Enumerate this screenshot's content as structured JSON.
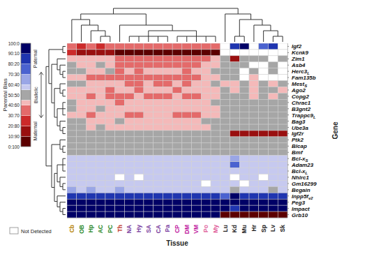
{
  "chart_data": {
    "type": "heatmap",
    "x_label": "Tissue",
    "y_label": "Gene",
    "categories": [
      {
        "name": "Cb",
        "color": "#b8860b"
      },
      {
        "name": "OB",
        "color": "#2e8b2e"
      },
      {
        "name": "Hp",
        "color": "#2e8b2e"
      },
      {
        "name": "AC",
        "color": "#2e8b2e"
      },
      {
        "name": "PC",
        "color": "#2e8b2e"
      },
      {
        "name": "Th",
        "color": "#c0392b"
      },
      {
        "name": "NA",
        "color": "#7b3fa0"
      },
      {
        "name": "Hy",
        "color": "#7b3fa0"
      },
      {
        "name": "SA",
        "color": "#7b3fa0"
      },
      {
        "name": "CA",
        "color": "#7b3fa0"
      },
      {
        "name": "Pa",
        "color": "#7b3fa0"
      },
      {
        "name": "CP",
        "color": "#c020a0"
      },
      {
        "name": "DM",
        "color": "#c020a0"
      },
      {
        "name": "VM",
        "color": "#c020a0"
      },
      {
        "name": "Po",
        "color": "#e0609a"
      },
      {
        "name": "My",
        "color": "#e0609a"
      },
      {
        "name": "Lu",
        "color": "#222222"
      },
      {
        "name": "Kd",
        "color": "#222222"
      },
      {
        "name": "Mu",
        "color": "#222222"
      },
      {
        "name": "Hr",
        "color": "#222222"
      },
      {
        "name": "Sp",
        "color": "#222222"
      },
      {
        "name": "Lv",
        "color": "#222222"
      },
      {
        "name": "Sk",
        "color": "#222222"
      }
    ],
    "rows": [
      {
        "name": "Igf2",
        "values": [
          30,
          25,
          30,
          25,
          30,
          30,
          35,
          30,
          35,
          30,
          30,
          35,
          30,
          35,
          30,
          30,
          null,
          80,
          92,
          null,
          75,
          88,
          null
        ]
      },
      {
        "name": "Kcnk9",
        "values": [
          20,
          15,
          15,
          15,
          10,
          5,
          5,
          5,
          5,
          5,
          5,
          5,
          5,
          5,
          5,
          5,
          null,
          null,
          null,
          null,
          null,
          null,
          null
        ]
      },
      {
        "name": "Zim1",
        "values": [
          40,
          42,
          40,
          40,
          40,
          35,
          30,
          30,
          35,
          30,
          35,
          30,
          30,
          35,
          35,
          40,
          50,
          15,
          50,
          50,
          50,
          null,
          50
        ]
      },
      {
        "name": "Asb4",
        "values": [
          50,
          42,
          42,
          50,
          42,
          35,
          35,
          30,
          35,
          35,
          35,
          35,
          30,
          35,
          42,
          42,
          50,
          50,
          50,
          null,
          null,
          50,
          null
        ]
      },
      {
        "name": "Herc3",
        "sub": "L",
        "values": [
          50,
          50,
          42,
          42,
          50,
          35,
          42,
          35,
          42,
          42,
          42,
          42,
          35,
          42,
          42,
          50,
          50,
          50,
          null,
          50,
          null,
          50,
          null
        ]
      },
      {
        "name": "Fam135b",
        "values": [
          42,
          42,
          35,
          35,
          35,
          35,
          35,
          35,
          35,
          35,
          35,
          35,
          35,
          35,
          42,
          42,
          50,
          50,
          null,
          42,
          null,
          null,
          null
        ]
      },
      {
        "name": "Mest",
        "sub": "S",
        "values": [
          50,
          50,
          42,
          42,
          42,
          42,
          35,
          35,
          42,
          35,
          35,
          42,
          35,
          42,
          42,
          50,
          42,
          42,
          50,
          42,
          50,
          42,
          50
        ]
      },
      {
        "name": "Ago2",
        "values": [
          42,
          42,
          42,
          42,
          35,
          42,
          42,
          35,
          42,
          42,
          42,
          35,
          42,
          42,
          42,
          42,
          50,
          42,
          50,
          42,
          50,
          50,
          42
        ]
      },
      {
        "name": "Copg2",
        "values": [
          42,
          42,
          35,
          42,
          35,
          35,
          35,
          42,
          35,
          35,
          35,
          42,
          35,
          35,
          42,
          42,
          50,
          50,
          50,
          42,
          50,
          42,
          50
        ]
      },
      {
        "name": "Chrac1",
        "values": [
          50,
          42,
          42,
          42,
          42,
          35,
          42,
          42,
          42,
          42,
          42,
          42,
          42,
          42,
          42,
          50,
          50,
          50,
          50,
          50,
          50,
          50,
          50
        ]
      },
      {
        "name": "B3gnt2",
        "values": [
          50,
          42,
          42,
          50,
          42,
          42,
          42,
          42,
          42,
          42,
          42,
          42,
          42,
          42,
          42,
          42,
          50,
          50,
          50,
          50,
          50,
          50,
          50
        ]
      },
      {
        "name": "Trappc9",
        "sub": "L",
        "values": [
          42,
          42,
          35,
          42,
          42,
          42,
          35,
          35,
          42,
          42,
          42,
          35,
          35,
          35,
          42,
          42,
          50,
          50,
          50,
          50,
          50,
          50,
          50
        ]
      },
      {
        "name": "Bag3",
        "values": [
          50,
          50,
          42,
          42,
          42,
          50,
          42,
          42,
          42,
          42,
          42,
          42,
          42,
          42,
          50,
          50,
          50,
          50,
          50,
          50,
          50,
          50,
          50
        ]
      },
      {
        "name": "Ube3a",
        "values": [
          50,
          50,
          42,
          50,
          42,
          42,
          42,
          42,
          42,
          42,
          42,
          42,
          42,
          42,
          42,
          50,
          50,
          50,
          50,
          50,
          50,
          50,
          50
        ]
      },
      {
        "name": "Igf2r",
        "values": [
          50,
          50,
          50,
          50,
          50,
          50,
          50,
          50,
          50,
          50,
          50,
          50,
          50,
          50,
          50,
          50,
          50,
          10,
          10,
          15,
          10,
          10,
          10
        ]
      },
      {
        "name": "Ptk2",
        "values": [
          50,
          50,
          50,
          50,
          50,
          50,
          50,
          50,
          50,
          50,
          50,
          50,
          50,
          50,
          50,
          50,
          50,
          50,
          50,
          50,
          50,
          50,
          50
        ]
      },
      {
        "name": "Blcap",
        "values": [
          50,
          50,
          50,
          50,
          50,
          50,
          50,
          50,
          50,
          50,
          50,
          50,
          50,
          50,
          50,
          50,
          50,
          50,
          50,
          50,
          50,
          50,
          50
        ]
      },
      {
        "name": "Bmf",
        "values": [
          50,
          50,
          50,
          50,
          50,
          50,
          50,
          50,
          50,
          50,
          50,
          50,
          50,
          50,
          50,
          50,
          50,
          50,
          50,
          50,
          50,
          50,
          50
        ]
      },
      {
        "name": "Bcl-x",
        "sub": "S",
        "values": [
          57,
          57,
          57,
          57,
          57,
          57,
          57,
          57,
          57,
          57,
          57,
          57,
          57,
          57,
          57,
          57,
          57,
          65,
          57,
          57,
          57,
          57,
          57
        ]
      },
      {
        "name": "Adam23",
        "values": [
          57,
          57,
          57,
          57,
          57,
          57,
          57,
          57,
          57,
          57,
          57,
          57,
          57,
          57,
          57,
          57,
          57,
          70,
          57,
          57,
          57,
          57,
          57
        ]
      },
      {
        "name": "Bcl-x",
        "sub": "L",
        "values": [
          57,
          57,
          57,
          57,
          57,
          57,
          57,
          57,
          57,
          57,
          57,
          57,
          57,
          57,
          57,
          57,
          57,
          57,
          57,
          57,
          57,
          57,
          57
        ]
      },
      {
        "name": "Nhlrc1",
        "values": [
          57,
          57,
          57,
          57,
          57,
          null,
          57,
          null,
          57,
          57,
          57,
          57,
          57,
          57,
          57,
          57,
          57,
          null,
          57,
          57,
          null,
          57,
          57
        ]
      },
      {
        "name": "Gm16299",
        "values": [
          57,
          57,
          57,
          57,
          57,
          57,
          57,
          57,
          57,
          57,
          57,
          57,
          57,
          57,
          null,
          57,
          57,
          57,
          null,
          57,
          57,
          57,
          57
        ]
      },
      {
        "name": "Begain",
        "values": [
          65,
          57,
          65,
          57,
          57,
          65,
          57,
          57,
          57,
          57,
          57,
          57,
          57,
          57,
          57,
          57,
          57,
          50,
          57,
          57,
          57,
          50,
          57
        ]
      },
      {
        "name": "Inpp5f",
        "sub": "v2",
        "values": [
          80,
          80,
          80,
          80,
          80,
          80,
          80,
          80,
          80,
          80,
          80,
          80,
          80,
          80,
          80,
          80,
          70,
          95,
          80,
          80,
          80,
          80,
          80
        ]
      },
      {
        "name": "Peg3",
        "values": [
          95,
          95,
          95,
          95,
          95,
          95,
          95,
          95,
          95,
          95,
          95,
          95,
          95,
          95,
          95,
          95,
          95,
          90,
          95,
          95,
          95,
          95,
          95
        ]
      },
      {
        "name": "Impact",
        "values": [
          95,
          95,
          95,
          95,
          95,
          95,
          95,
          95,
          95,
          95,
          95,
          95,
          95,
          95,
          95,
          95,
          95,
          85,
          95,
          95,
          95,
          95,
          95
        ]
      },
      {
        "name": "Grb10",
        "values": [
          95,
          95,
          95,
          95,
          95,
          95,
          95,
          95,
          95,
          95,
          95,
          95,
          95,
          95,
          95,
          95,
          5,
          5,
          5,
          5,
          5,
          5,
          5
        ]
      }
    ],
    "colorbar": {
      "title": "Parental Bias",
      "range": [
        0,
        100
      ],
      "ticks": [
        {
          "value": 100,
          "label": "100:0"
        },
        {
          "value": 90,
          "label": "90:10"
        },
        {
          "value": 80,
          "label": "80:20"
        },
        {
          "value": 70,
          "label": "70:30"
        },
        {
          "value": 60,
          "label": "60:40"
        },
        {
          "value": 50,
          "label": "50:50"
        },
        {
          "value": 40,
          "label": "40:60"
        },
        {
          "value": 30,
          "label": "30:70"
        },
        {
          "value": 20,
          "label": "20:80"
        },
        {
          "value": 10,
          "label": "10:90"
        },
        {
          "value": 0,
          "label": "0:100"
        }
      ],
      "bins": [
        {
          "from": 0,
          "to": 10,
          "color": "#5c0000"
        },
        {
          "from": 10,
          "to": 20,
          "color": "#990f0f"
        },
        {
          "from": 20,
          "to": 30,
          "color": "#cc2a2a"
        },
        {
          "from": 30,
          "to": 40,
          "color": "#e46a6a"
        },
        {
          "from": 40,
          "to": 45,
          "color": "#f4b9b9"
        },
        {
          "from": 45,
          "to": 55,
          "color": "#a6a6a6"
        },
        {
          "from": 55,
          "to": 60,
          "color": "#c6c9ef"
        },
        {
          "from": 60,
          "to": 70,
          "color": "#9aa6e6"
        },
        {
          "from": 70,
          "to": 80,
          "color": "#4a62d0"
        },
        {
          "from": 80,
          "to": 90,
          "color": "#1f35b0"
        },
        {
          "from": 90,
          "to": 100,
          "color": "#000066"
        }
      ],
      "top_label": "Paternal",
      "middle_label": "Biallelic",
      "bottom_label": "Maternal",
      "missing_label": "Not Detected"
    }
  }
}
